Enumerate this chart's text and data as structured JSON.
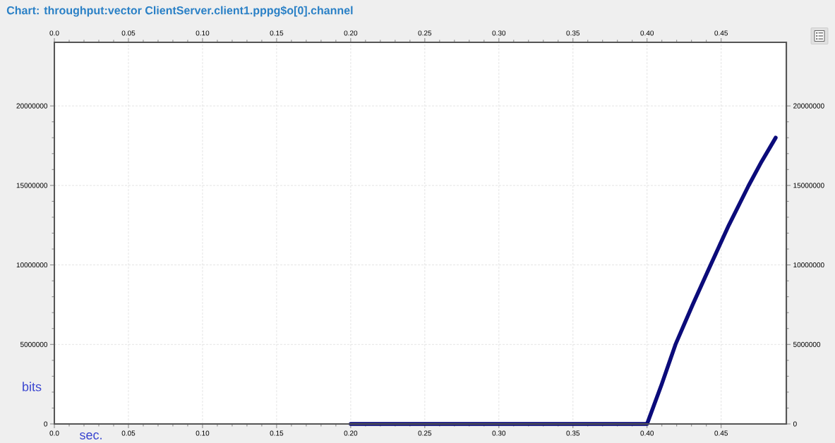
{
  "chart_data": {
    "type": "line",
    "title": "Chart: throughput:vector ClientServer.client1.pppg$o[0].channel",
    "xlabel": "sec.",
    "ylabel": "bits",
    "x": [
      0.2,
      0.4,
      0.4099,
      0.4192,
      0.4308,
      0.4429,
      0.4552,
      0.4686,
      0.4773,
      0.4868
    ],
    "series": [
      {
        "color": "#0b0b7a",
        "values": [
          0,
          0,
          2500000,
          5000000,
          7500000,
          10000000,
          12500000,
          15000000,
          16500000,
          18000000
        ]
      }
    ],
    "xlim": [
      0,
      0.494
    ],
    "ylim": [
      0,
      24000000
    ],
    "xticks": [
      {
        "value": 0,
        "label": "0.0"
      },
      0.05,
      {
        "value": 0.1,
        "label": "0.10"
      },
      0.15,
      {
        "value": 0.2,
        "label": "0.20"
      },
      0.25,
      {
        "value": 0.3,
        "label": "0.30"
      },
      0.35,
      {
        "value": 0.4,
        "label": "0.40"
      },
      0.45
    ],
    "yticks": [
      0,
      5000000,
      10000000,
      15000000,
      20000000
    ],
    "x2lim": [
      0,
      0.494
    ],
    "y2lim": [
      0,
      24000000
    ],
    "x2ticks": [
      {
        "value": 0,
        "label": "0.0"
      },
      0.05,
      {
        "value": 0.1,
        "label": "0.10"
      },
      0.15,
      {
        "value": 0.2,
        "label": "0.20"
      },
      0.25,
      {
        "value": 0.3,
        "label": "0.30"
      },
      0.35,
      {
        "value": 0.4,
        "label": "0.40"
      },
      0.45
    ],
    "y2ticks": [
      0,
      5000000,
      10000000,
      15000000,
      20000000
    ],
    "grid": true
  }
}
